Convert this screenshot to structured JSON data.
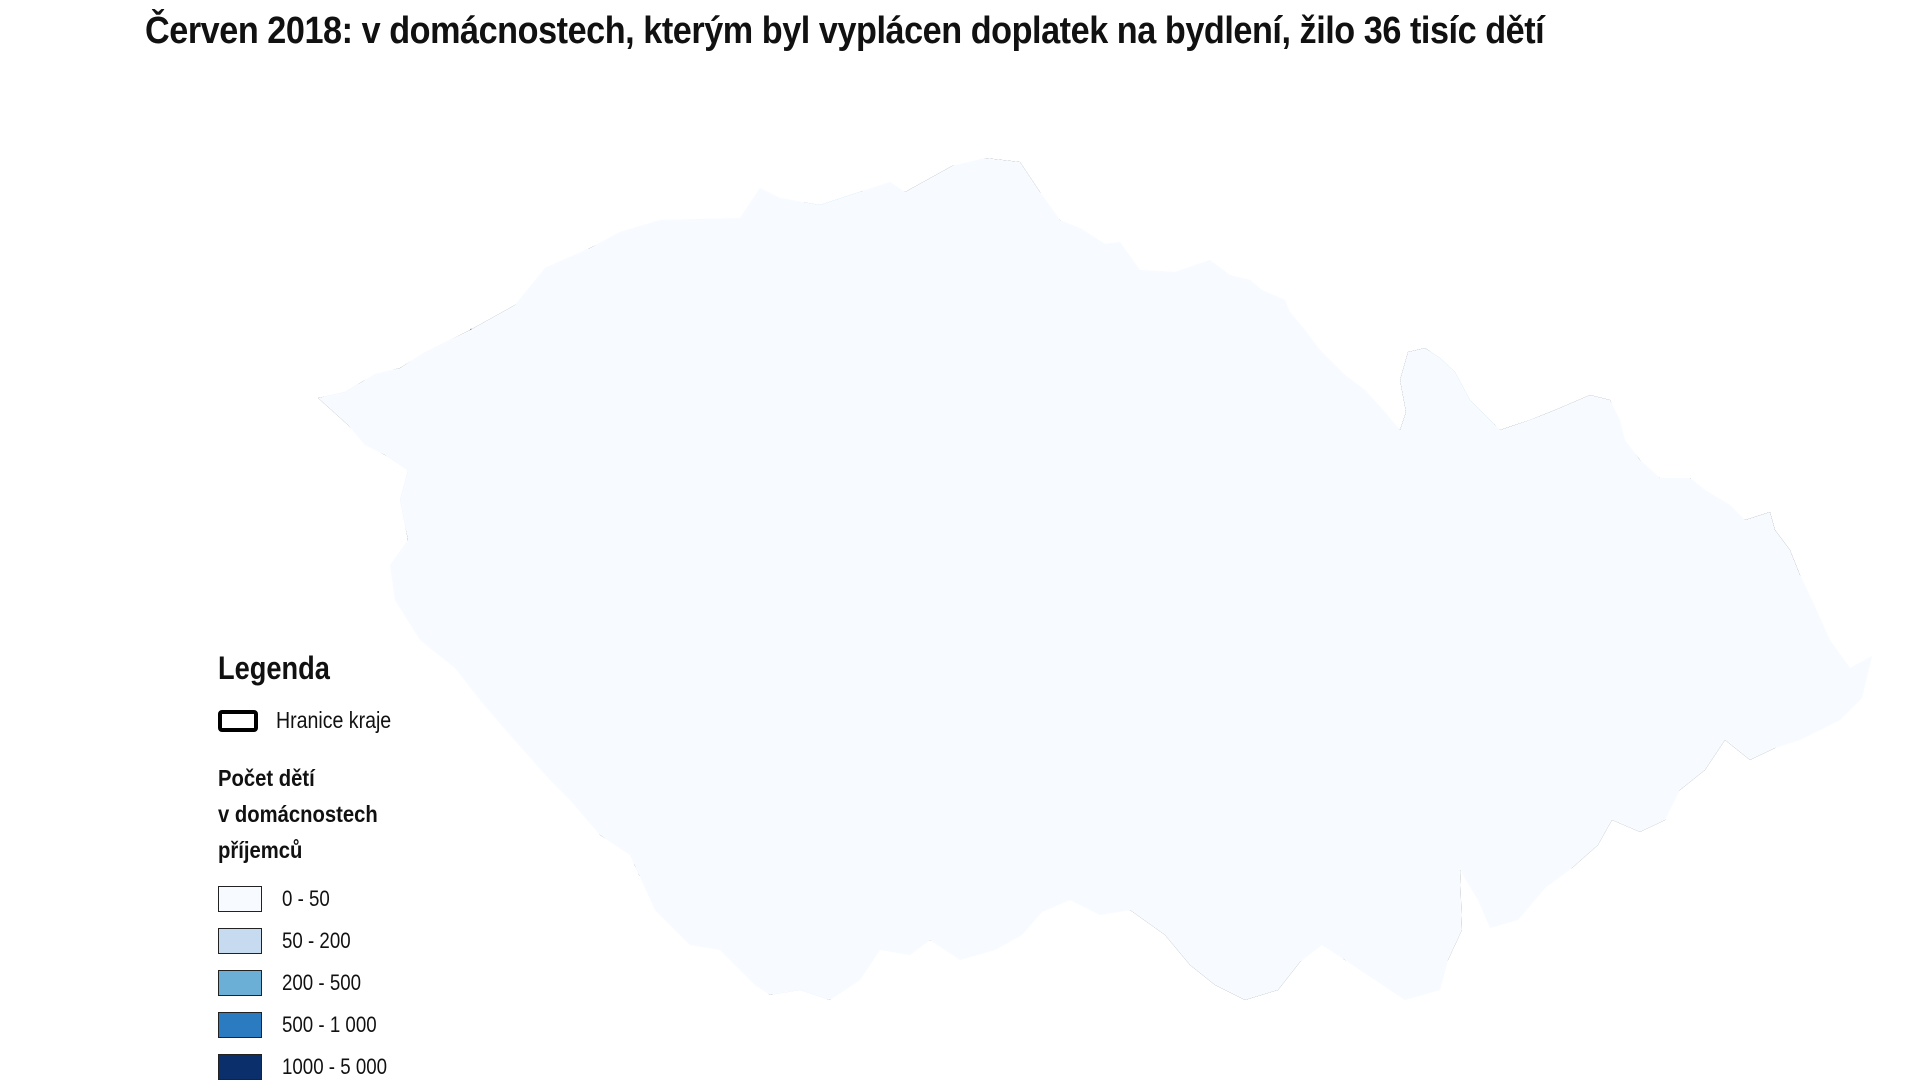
{
  "title": "Červen 2018: v domácnostech, kterým byl vyplácen doplatek na bydlení, žilo 36 tisíc dětí",
  "colors": {
    "c0": "#f7fbff",
    "c1": "#c6dbef",
    "c2": "#6baed6",
    "c3": "#2b7bc0",
    "c4": "#0b2f6b",
    "region_border": "#000000",
    "district_border": "#222222"
  },
  "legend": {
    "heading": "Legenda",
    "border_label": "Hranice kraje",
    "subtitle_lines": [
      "Počet dětí",
      "v domácnostech",
      "příjemců"
    ],
    "classes": [
      {
        "label": "0 - 50",
        "color": "#f7fbff"
      },
      {
        "label": "50 - 200",
        "color": "#c6dbef"
      },
      {
        "label": "200 - 500",
        "color": "#6baed6"
      },
      {
        "label": "500 - 1 000",
        "color": "#2b7bc0"
      },
      {
        "label": "1000 - 5 000",
        "color": "#0b2f6b"
      }
    ]
  }
}
